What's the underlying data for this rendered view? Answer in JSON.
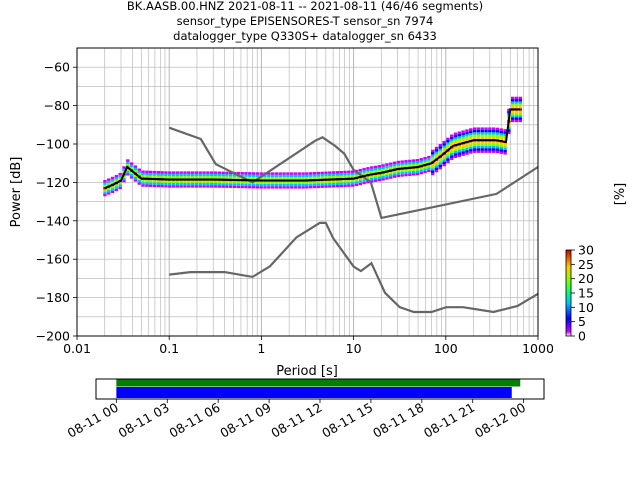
{
  "chart_data": {
    "type": "heatmap",
    "title_lines": [
      "BK.AASB.00.HNZ   2021-08-11 -- 2021-08-11  (46/46 segments)",
      "sensor_type EPISENSORES-T sensor_sn 7974",
      "datalogger_type Q330S+ datalogger_sn 6433"
    ],
    "xlabel": "Period [s]",
    "ylabel": "Power [dB]",
    "xscale": "log",
    "xlim": [
      0.01,
      1000
    ],
    "ylim": [
      -200,
      -50
    ],
    "grid": true,
    "x_ticks": [
      {
        "value": 0.01,
        "label": "0.01"
      },
      {
        "value": 0.1,
        "label": "0.1"
      },
      {
        "value": 1,
        "label": "1"
      },
      {
        "value": 10,
        "label": "10"
      },
      {
        "value": 100,
        "label": "100"
      },
      {
        "value": 1000,
        "label": "1000"
      }
    ],
    "y_ticks": [
      {
        "value": -60,
        "label": "−60"
      },
      {
        "value": -80,
        "label": "−80"
      },
      {
        "value": -100,
        "label": "−100"
      },
      {
        "value": -120,
        "label": "−120"
      },
      {
        "value": -140,
        "label": "−140"
      },
      {
        "value": -160,
        "label": "−160"
      },
      {
        "value": -180,
        "label": "−180"
      },
      {
        "value": -200,
        "label": "−200"
      }
    ],
    "noise_model_high": {
      "x": [
        0.1,
        0.22,
        0.32,
        0.8,
        3.8,
        4.6,
        6.3,
        7.9,
        10,
        15.4,
        20,
        354.8,
        1000
      ],
      "y": [
        -91.5,
        -97.4,
        -110.5,
        -120,
        -98.4,
        -96.5,
        -101,
        -105,
        -113.5,
        -120,
        -138.5,
        -126,
        -112
      ]
    },
    "noise_model_low": {
      "x": [
        0.1,
        0.17,
        0.4,
        0.8,
        1.24,
        2.4,
        4.3,
        5.0,
        6.0,
        10.0,
        12.0,
        15.6,
        21.9,
        31.6,
        45,
        70,
        101,
        154,
        328,
        600,
        1000
      ],
      "y": [
        -168,
        -166.7,
        -166.7,
        -169.2,
        -163.7,
        -148.6,
        -141.1,
        -141.1,
        -149,
        -163.8,
        -166.2,
        -162.1,
        -177.5,
        -185,
        -187.5,
        -187.5,
        -185,
        -185,
        -187.5,
        -184.4,
        -178
      ]
    },
    "median_curve": {
      "x": [
        0.02,
        0.025,
        0.03,
        0.035,
        0.05,
        0.1,
        0.3,
        1,
        3,
        10,
        15,
        20,
        30,
        50,
        70,
        90,
        120,
        200,
        350,
        450,
        500,
        640
      ],
      "y": [
        -123,
        -121,
        -119,
        -112,
        -118,
        -118.5,
        -118.5,
        -119,
        -119,
        -118,
        -116,
        -115,
        -113,
        -112,
        -110,
        -106,
        -101,
        -98,
        -98,
        -99,
        -82,
        -82
      ]
    },
    "colorbar": {
      "label": "[%]",
      "range": [
        0,
        30
      ],
      "ticks": [
        {
          "value": 0,
          "label": "0"
        },
        {
          "value": 5,
          "label": "5"
        },
        {
          "value": 10,
          "label": "10"
        },
        {
          "value": 15,
          "label": "15"
        },
        {
          "value": 20,
          "label": "20"
        },
        {
          "value": 25,
          "label": "25"
        },
        {
          "value": 30,
          "label": "30"
        }
      ]
    },
    "coverage": {
      "time_ticks": [
        "08-11 00",
        "08-11 03",
        "08-11 06",
        "08-11 09",
        "08-11 12",
        "08-11 15",
        "08-11 18",
        "08-11 21",
        "08-12 00"
      ],
      "green_bar_hours": [
        0,
        23.8
      ],
      "blue_bar_hours": [
        0,
        23.3
      ],
      "axis_hours": [
        -1.2,
        25.2
      ],
      "green_color": "#008000",
      "blue_color": "#0000ff"
    }
  }
}
